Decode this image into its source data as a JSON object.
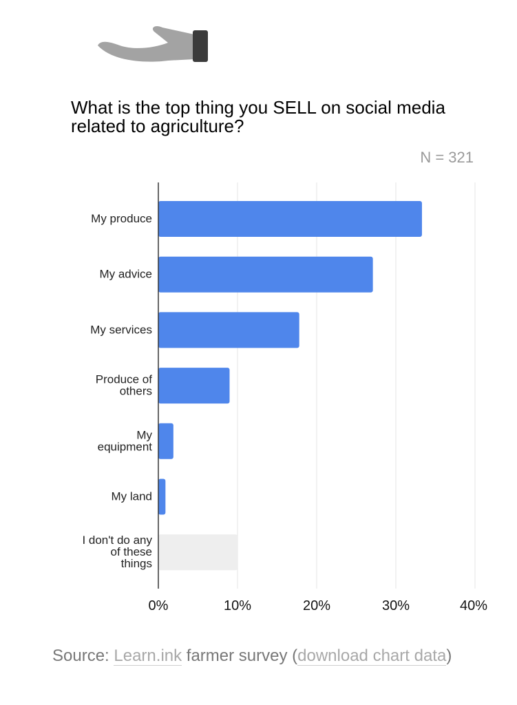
{
  "header": {
    "title": "What is the top thing you SELL on social media related to agriculture?",
    "n_label": "N = 321"
  },
  "icon": {
    "name": "hand-icon"
  },
  "chart_data": {
    "type": "bar",
    "orientation": "horizontal",
    "title": "What is the top thing you SELL on social media related to agriculture?",
    "annotation": "N = 321",
    "categories": [
      "My produce",
      "My advice",
      "My services",
      "Produce of others",
      "My equipment",
      "My land",
      "I don't do any of these things"
    ],
    "category_lines": [
      [
        "My produce"
      ],
      [
        "My advice"
      ],
      [
        "My services"
      ],
      [
        "Produce of",
        "others"
      ],
      [
        "My",
        "equipment"
      ],
      [
        "My land"
      ],
      [
        "I don't do any",
        "of these",
        "things"
      ]
    ],
    "values": [
      33.3,
      27.1,
      17.8,
      9.0,
      1.9,
      0.9,
      10.0
    ],
    "bar_colors": [
      "#4f86eb",
      "#4f86eb",
      "#4f86eb",
      "#4f86eb",
      "#4f86eb",
      "#4f86eb",
      "#eeeeee"
    ],
    "xlim": [
      0,
      40
    ],
    "x_ticks": [
      0,
      10,
      20,
      30,
      40
    ],
    "x_tick_labels": [
      "0%",
      "10%",
      "20%",
      "30%",
      "40%"
    ],
    "grid": true
  },
  "source": {
    "prefix": "Source: ",
    "link1": "Learn.ink",
    "middle": " farmer survey (",
    "link2": "download chart data",
    "suffix": ")"
  },
  "colors": {
    "bar": "#4f86eb",
    "bar_muted": "#eeeeee",
    "grid": "#e6e6e6",
    "axis": "#333333",
    "hand": "#a3a3a3",
    "cuff": "#3b3b3b"
  }
}
